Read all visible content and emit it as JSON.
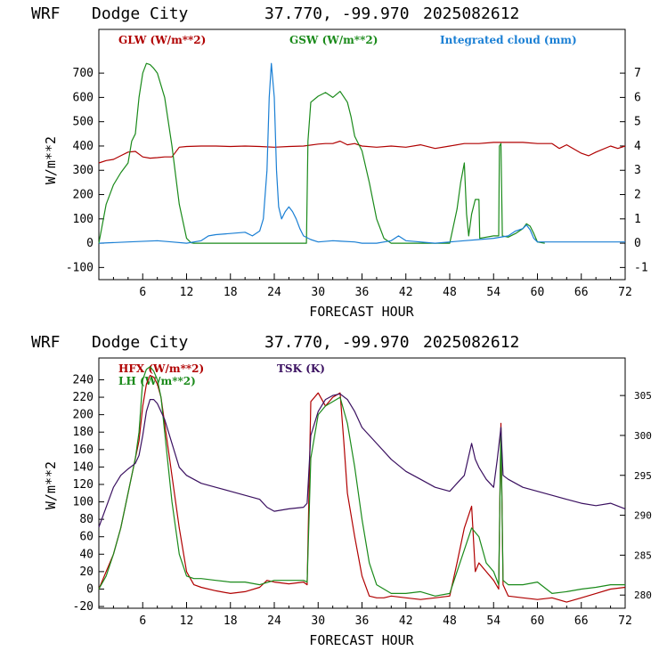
{
  "header": {
    "model": "WRF",
    "station": "Dodge City",
    "coords": "37.770, -99.970",
    "datetime": "2025082612"
  },
  "colors": {
    "red": "#b00000",
    "green": "#1a8a1a",
    "blue": "#1a7fd4",
    "purple": "#3a1060"
  },
  "chart_data": [
    {
      "type": "line",
      "xlabel": "FORECAST HOUR",
      "ylabel": "W/m**2",
      "xlim": [
        0,
        72
      ],
      "ylim": [
        -150,
        880
      ],
      "y2lim": [
        -1.5,
        8.8
      ],
      "xticks": [
        6,
        12,
        18,
        24,
        30,
        36,
        42,
        48,
        54,
        60,
        66,
        72
      ],
      "yticks": [
        -100,
        0,
        100,
        200,
        300,
        400,
        500,
        600,
        700
      ],
      "y2ticks": [
        -1,
        0,
        1,
        2,
        3,
        4,
        5,
        6,
        7
      ],
      "grid": false,
      "series": [
        {
          "name": "GLW (W/m**2)",
          "color": "#b00000",
          "axis": "left",
          "x": [
            0,
            1,
            2,
            3,
            4,
            5,
            6,
            7,
            8,
            9,
            10,
            11,
            12,
            14,
            16,
            18,
            20,
            22,
            24,
            26,
            28,
            30,
            31,
            32,
            33,
            34,
            35,
            36,
            38,
            40,
            42,
            44,
            46,
            48,
            50,
            52,
            54,
            56,
            58,
            60,
            62,
            63,
            64,
            66,
            67,
            68,
            70,
            71,
            72
          ],
          "y": [
            330,
            340,
            345,
            360,
            375,
            378,
            355,
            350,
            352,
            355,
            355,
            395,
            398,
            400,
            400,
            398,
            400,
            398,
            395,
            398,
            400,
            408,
            410,
            410,
            420,
            405,
            410,
            400,
            395,
            400,
            395,
            405,
            390,
            400,
            410,
            410,
            415,
            415,
            415,
            410,
            410,
            390,
            405,
            370,
            360,
            375,
            400,
            390,
            400
          ]
        },
        {
          "name": "GSW (W/m**2)",
          "color": "#1a8a1a",
          "axis": "left",
          "x": [
            0,
            0.5,
            1,
            2,
            3,
            4,
            4.5,
            5,
            5.5,
            6,
            6.5,
            7,
            7.5,
            8,
            9,
            10,
            11,
            12,
            12.6,
            13,
            14,
            28.4,
            28.6,
            29,
            30,
            31,
            32,
            33,
            34,
            34.5,
            35,
            36,
            37,
            38,
            39,
            40,
            48,
            49,
            49.5,
            50,
            50.3,
            50.6,
            51,
            51.5,
            52,
            52.1,
            53,
            54,
            54.7,
            54.8,
            55,
            55.2,
            56,
            57,
            58,
            58.5,
            59,
            59.5,
            60,
            61
          ],
          "y": [
            0,
            80,
            160,
            240,
            290,
            330,
            420,
            450,
            600,
            700,
            740,
            735,
            720,
            700,
            600,
            400,
            160,
            20,
            2,
            0,
            0,
            0,
            420,
            580,
            605,
            620,
            600,
            625,
            580,
            520,
            440,
            380,
            250,
            100,
            20,
            0,
            0,
            140,
            250,
            330,
            120,
            30,
            120,
            180,
            180,
            20,
            25,
            30,
            30,
            400,
            410,
            30,
            25,
            40,
            60,
            80,
            70,
            40,
            5,
            0
          ]
        },
        {
          "name": "Integrated cloud (mm)",
          "color": "#1a7fd4",
          "axis": "right",
          "x": [
            0,
            4,
            8,
            10,
            12,
            14,
            15,
            16,
            18,
            20,
            21,
            22,
            22.5,
            23,
            23.3,
            23.6,
            24,
            24.3,
            24.6,
            25,
            25.5,
            26,
            26.5,
            27,
            27.5,
            28,
            29,
            30,
            32,
            35,
            36,
            38,
            40,
            41,
            42,
            44,
            46,
            48,
            50,
            52,
            54,
            56,
            57,
            58,
            58.5,
            59,
            59.5,
            60,
            72
          ],
          "y": [
            0,
            0.05,
            0.1,
            0.05,
            0,
            0.1,
            0.3,
            0.35,
            0.4,
            0.45,
            0.3,
            0.5,
            1,
            3,
            6,
            7.4,
            6,
            3,
            1.5,
            1,
            1.3,
            1.5,
            1.3,
            1,
            0.6,
            0.3,
            0.15,
            0.05,
            0.1,
            0.05,
            0,
            0,
            0.1,
            0.3,
            0.1,
            0.05,
            0,
            0.05,
            0.1,
            0.15,
            0.2,
            0.3,
            0.5,
            0.6,
            0.75,
            0.55,
            0.2,
            0.05,
            0.05
          ]
        }
      ]
    },
    {
      "type": "line",
      "xlabel": "FORECAST HOUR",
      "ylabel": "W/m**2",
      "xlim": [
        0,
        72
      ],
      "ylim": [
        -22,
        265
      ],
      "y2lim": [
        278.35,
        309.7
      ],
      "xticks": [
        6,
        12,
        18,
        24,
        30,
        36,
        42,
        48,
        54,
        60,
        66,
        72
      ],
      "yticks": [
        -20,
        0,
        20,
        40,
        60,
        80,
        100,
        120,
        140,
        160,
        180,
        200,
        220,
        240
      ],
      "y2ticks": [
        280,
        285,
        290,
        295,
        300,
        305
      ],
      "grid": false,
      "series": [
        {
          "name": "HFX (W/m**2)",
          "color": "#b00000",
          "axis": "left",
          "x": [
            0,
            1,
            2,
            3,
            4,
            5,
            5.5,
            6,
            6.5,
            7,
            7.5,
            8,
            8.5,
            9,
            10,
            11,
            12,
            13,
            14,
            16,
            18,
            20,
            22,
            23,
            24,
            26,
            28,
            28.5,
            29,
            30,
            31,
            32,
            33,
            33.5,
            34,
            35,
            36,
            37,
            38,
            39,
            40,
            42,
            44,
            46,
            48,
            49,
            50,
            51,
            51.5,
            52,
            53,
            54,
            54.7,
            55,
            55.3,
            56,
            58,
            60,
            62,
            64,
            66,
            68,
            70,
            72
          ],
          "y": [
            0,
            20,
            40,
            70,
            110,
            150,
            170,
            210,
            235,
            245,
            243,
            235,
            220,
            190,
            130,
            70,
            20,
            5,
            2,
            -2,
            -5,
            -3,
            2,
            10,
            8,
            6,
            8,
            5,
            215,
            225,
            210,
            220,
            225,
            170,
            110,
            60,
            15,
            -8,
            -10,
            -10,
            -8,
            -10,
            -12,
            -10,
            -8,
            30,
            70,
            95,
            20,
            30,
            20,
            10,
            0,
            190,
            5,
            -8,
            -10,
            -12,
            -10,
            -15,
            -10,
            -5,
            0,
            2
          ]
        },
        {
          "name": "LH  (W/m**2)",
          "color": "#1a8a1a",
          "axis": "left",
          "x": [
            0,
            1,
            2,
            3,
            4,
            5,
            5.5,
            6,
            6.5,
            7,
            7.5,
            8,
            8.5,
            9,
            10,
            11,
            12,
            13,
            14,
            16,
            18,
            20,
            22,
            24,
            26,
            28,
            28.5,
            29,
            30,
            31,
            32,
            33,
            34,
            35,
            36,
            37,
            38,
            39,
            40,
            42,
            44,
            46,
            48,
            49,
            50,
            51,
            52,
            53,
            54,
            54.7,
            55,
            55.3,
            56,
            58,
            60,
            62,
            64,
            66,
            68,
            70,
            72
          ],
          "y": [
            0,
            15,
            40,
            70,
            110,
            150,
            180,
            240,
            252,
            255,
            250,
            240,
            220,
            180,
            100,
            40,
            15,
            12,
            12,
            10,
            8,
            8,
            5,
            10,
            10,
            10,
            8,
            150,
            200,
            210,
            215,
            220,
            190,
            140,
            80,
            30,
            5,
            0,
            -5,
            -5,
            -3,
            -8,
            -5,
            20,
            45,
            70,
            60,
            30,
            20,
            5,
            185,
            10,
            5,
            5,
            8,
            -5,
            -3,
            0,
            2,
            5,
            5
          ]
        },
        {
          "name": "TSK (K)",
          "color": "#3a1060",
          "axis": "right",
          "x": [
            0,
            1,
            2,
            3,
            4,
            5,
            5.5,
            6,
            6.5,
            7,
            7.5,
            8,
            8.5,
            9,
            10,
            11,
            12,
            14,
            16,
            18,
            20,
            22,
            23,
            24,
            26,
            28,
            28.5,
            29,
            30,
            31,
            32,
            33,
            34,
            35,
            36,
            38,
            40,
            42,
            44,
            46,
            48,
            49,
            50,
            50.5,
            51,
            51.5,
            52,
            53,
            54,
            54.5,
            55,
            55.3,
            56,
            58,
            60,
            62,
            64,
            66,
            68,
            70,
            72
          ],
          "y": [
            288.5,
            291,
            293.5,
            295,
            295.8,
            296.5,
            297.5,
            300,
            303,
            304.5,
            304.5,
            304,
            303,
            302,
            299,
            296,
            295,
            294,
            293.5,
            293,
            292.5,
            292,
            291,
            290.5,
            290.8,
            291,
            291.5,
            300,
            303,
            304.5,
            305,
            305.2,
            304.5,
            303,
            301,
            299,
            297,
            295.5,
            294.5,
            293.5,
            293,
            294,
            295,
            297,
            299,
            297,
            296,
            294.5,
            293.5,
            297,
            301,
            295,
            294.5,
            293.5,
            293,
            292.5,
            292,
            291.5,
            291.2,
            291.5,
            290.8
          ]
        }
      ]
    }
  ]
}
